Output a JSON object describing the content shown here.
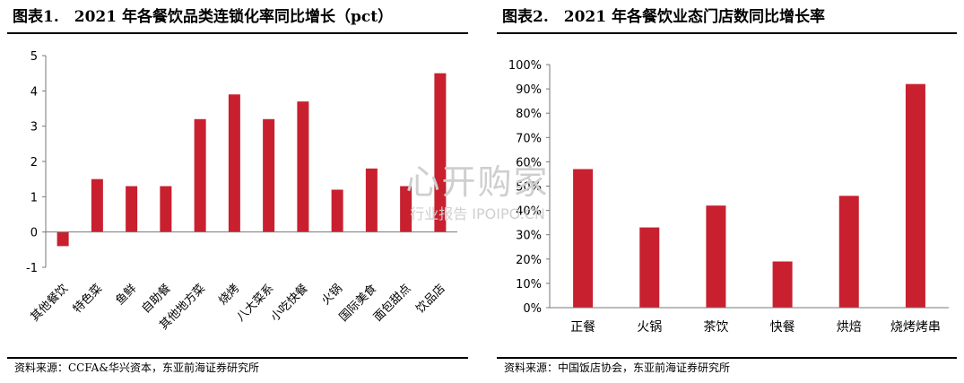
{
  "charts": [
    {
      "title": "图表1.　2021 年各餐饮品类连锁化率同比增长（pct）",
      "source": "资料来源：CCFA&华兴资本，东亚前海证券研究所"
    },
    {
      "title": "图表2.　2021 年各餐饮业态门店数同比增长率",
      "source": "资料来源：中国饭店协会，东亚前海证券研究所"
    }
  ],
  "watermark": {
    "main": "心开购家",
    "sub": "行业报告 IPOIPO.CN"
  },
  "chart_data": [
    {
      "type": "bar",
      "title": "2021 年各餐饮品类连锁化率同比增长（pct）",
      "categories": [
        "其他餐饮",
        "特色菜",
        "鱼鲜",
        "自助餐",
        "其他地方菜",
        "烧烤",
        "八大菜系",
        "小吃快餐",
        "火锅",
        "国际美食",
        "面包甜点",
        "饮品店"
      ],
      "values": [
        -0.4,
        1.5,
        1.3,
        1.3,
        3.2,
        3.9,
        3.2,
        3.7,
        1.2,
        1.8,
        1.3,
        4.5
      ],
      "y_ticks": [
        "5",
        "4",
        "3",
        "2",
        "1",
        "0",
        "-1"
      ],
      "ylim": [
        -1,
        5
      ],
      "color": "#c8202f",
      "grid": false
    },
    {
      "type": "bar",
      "title": "2021 年各餐饮业态门店数同比增长率",
      "categories": [
        "正餐",
        "火锅",
        "茶饮",
        "快餐",
        "烘焙",
        "烧烤烤串"
      ],
      "values": [
        0.57,
        0.33,
        0.42,
        0.19,
        0.46,
        0.92
      ],
      "y_ticks": [
        "100%",
        "90%",
        "80%",
        "70%",
        "60%",
        "50%",
        "40%",
        "30%",
        "20%",
        "10%",
        "0%"
      ],
      "ylim": [
        0,
        1
      ],
      "color": "#c8202f",
      "grid": false
    }
  ]
}
